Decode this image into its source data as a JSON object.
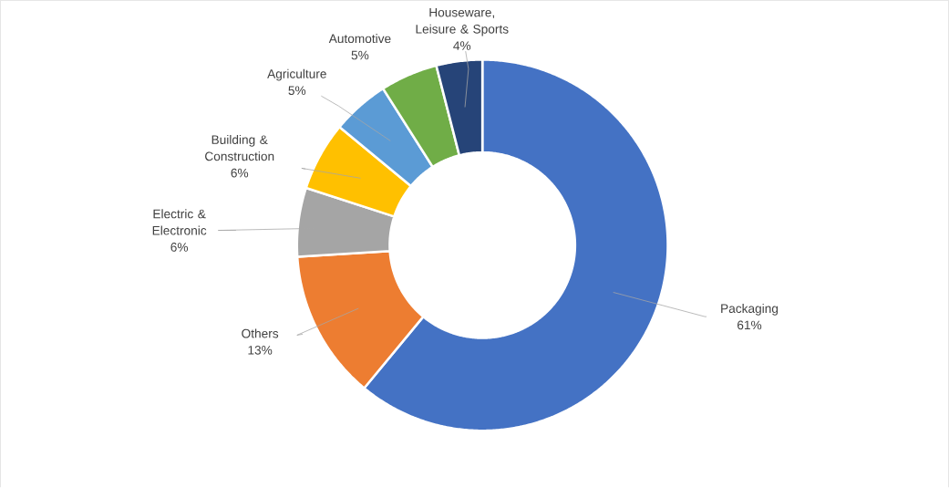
{
  "chart_data": {
    "type": "donut",
    "categories": [
      "Packaging",
      "Others",
      "Electric & Electronic",
      "Building & Construction",
      "Agriculture",
      "Automotive",
      "Houseware, Leisure & Sports"
    ],
    "values": [
      61,
      13,
      6,
      6,
      5,
      5,
      4
    ],
    "colors": [
      "#4472c4",
      "#ed7d31",
      "#a5a5a5",
      "#ffc000",
      "#5b9bd5",
      "#70ad47",
      "#264478"
    ],
    "value_labels": [
      "61%",
      "13%",
      "6%",
      "6%",
      "5%",
      "5%",
      "4%"
    ]
  }
}
